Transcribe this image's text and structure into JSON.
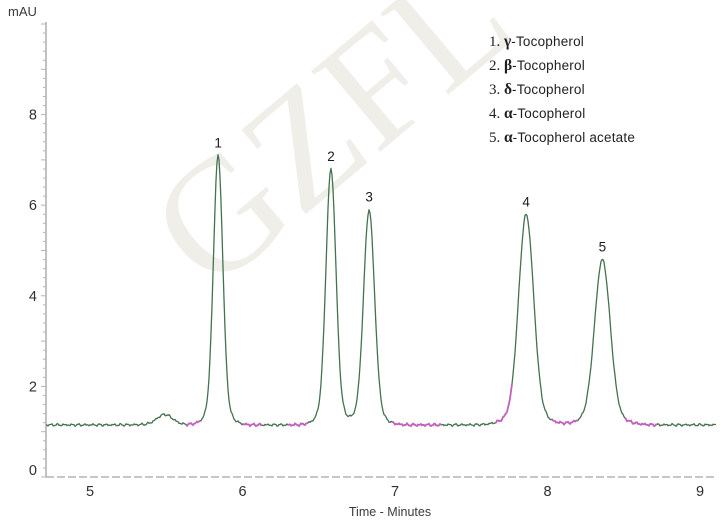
{
  "watermark": {
    "text": "GZFL"
  },
  "axes": {
    "y_title": "mAU",
    "x_title": "Time - Minutes"
  },
  "legend": {
    "items": [
      {
        "num": "1.",
        "greek": "γ",
        "name": "-Tocopherol"
      },
      {
        "num": "2.",
        "greek": "β",
        "name": "-Tocopherol"
      },
      {
        "num": "3.",
        "greek": "δ",
        "name": "-Tocopherol"
      },
      {
        "num": "4.",
        "greek": "α",
        "name": "-Tocopherol"
      },
      {
        "num": "5.",
        "greek": "α",
        "name": "-Tocopherol acetate"
      }
    ]
  },
  "chart_data": {
    "type": "line",
    "title": "",
    "xlabel": "Time - Minutes",
    "ylabel": "mAU",
    "xlim": [
      4.71,
      9.07
    ],
    "ylim": [
      0,
      10
    ],
    "x_ticks": [
      5,
      6,
      7,
      8,
      9
    ],
    "y_ticks": [
      0,
      2,
      4,
      6,
      8
    ],
    "grid": false,
    "legend_position": "upper right",
    "baseline_mau": 1.15,
    "trace_color": "#44714f",
    "marker_color": "#c263bb",
    "axis_color": "#a9a9a9",
    "tick_text_color": "#2f2f2f",
    "peaks": [
      {
        "label": "1",
        "name": "γ-Tocopherol",
        "time_min": 5.84,
        "apex_mau": 7.1,
        "sigma_min": 0.03
      },
      {
        "label": "2",
        "name": "β-Tocopherol",
        "time_min": 6.58,
        "apex_mau": 6.8,
        "sigma_min": 0.032
      },
      {
        "label": "3",
        "name": "δ-Tocopherol",
        "time_min": 6.83,
        "apex_mau": 5.9,
        "sigma_min": 0.035
      },
      {
        "label": "4",
        "name": "α-Tocopherol",
        "time_min": 7.86,
        "apex_mau": 5.8,
        "sigma_min": 0.048
      },
      {
        "label": "5",
        "name": "α-Tocopherol acetate",
        "time_min": 8.36,
        "apex_mau": 4.8,
        "sigma_min": 0.05
      }
    ],
    "minor_bump": {
      "time_min": 5.49,
      "apex_mau": 1.38,
      "sigma_min": 0.05
    },
    "baseline_marker_segments_min": [
      [
        5.63,
        5.72
      ],
      [
        6.0,
        6.13
      ],
      [
        6.3,
        6.43
      ],
      [
        6.98,
        7.3
      ],
      [
        7.66,
        7.77
      ],
      [
        8.03,
        8.2
      ],
      [
        8.51,
        8.72
      ]
    ]
  }
}
